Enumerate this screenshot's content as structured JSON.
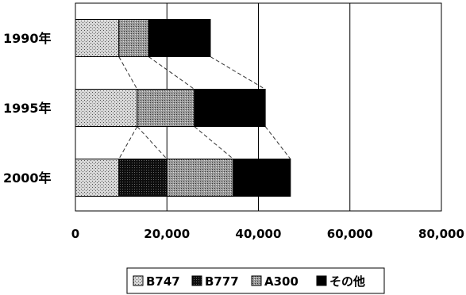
{
  "chart_data": {
    "type": "bar",
    "orientation": "horizontal",
    "stacked": true,
    "title": "",
    "xlabel": "",
    "ylabel": "",
    "xlim": [
      0,
      80000
    ],
    "x_ticks": [
      0,
      20000,
      40000,
      60000,
      80000
    ],
    "x_tick_labels": [
      "0",
      "20,000",
      "40,000",
      "60,000",
      "80,000"
    ],
    "grid": true,
    "legend_position": "bottom",
    "categories": [
      "1990年",
      "1995年",
      "2000年"
    ],
    "series": [
      {
        "name": "B747",
        "values": [
          9500,
          13500,
          9500
        ],
        "color": "#b8b8b8",
        "pattern": "dots-light"
      },
      {
        "name": "B777",
        "values": [
          0,
          0,
          10500
        ],
        "color": "#1a1a1a",
        "pattern": "dots-dark"
      },
      {
        "name": "A300",
        "values": [
          6500,
          12500,
          14500
        ],
        "color": "#8a8a8a",
        "pattern": "dots-mid"
      },
      {
        "name": "その他",
        "values": [
          13500,
          15500,
          12500
        ],
        "color": "#000000",
        "pattern": "solid"
      }
    ]
  }
}
